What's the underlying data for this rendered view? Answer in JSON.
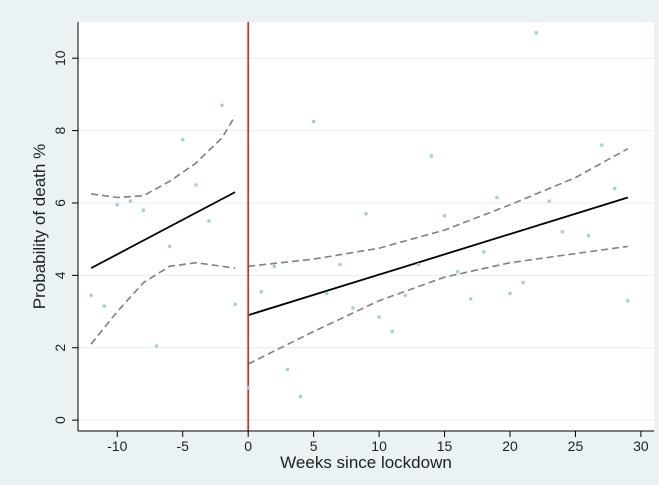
{
  "chart_data": {
    "type": "scatter",
    "xlabel": "Weeks  since lockdown",
    "ylabel": "Probability of death %",
    "xlim": [
      -13,
      31
    ],
    "ylim": [
      -0.3,
      11
    ],
    "x_ticks": [
      -10,
      -5,
      0,
      5,
      10,
      15,
      20,
      25,
      30
    ],
    "y_ticks": [
      0,
      2,
      4,
      6,
      8,
      10
    ],
    "x_tick_labels": [
      "-10",
      "-5",
      "0",
      "5",
      "10",
      "15",
      "20",
      "25",
      "30"
    ],
    "y_tick_labels": [
      "0",
      "2",
      "4",
      "6",
      "8",
      "10"
    ],
    "grid": "horizontal",
    "legend": "none",
    "cutoff_x": 0,
    "colors": {
      "outer_background": "#eaf2f3",
      "plot_background": "#ffffff",
      "points": "#9ed4d8",
      "fit_line": "#000000",
      "ci_line": "#808080",
      "cutoff_line": "#e32020",
      "grid": "#e6eef0"
    },
    "points": [
      {
        "x": -12,
        "y": 3.45
      },
      {
        "x": -11,
        "y": 3.15
      },
      {
        "x": -10,
        "y": 5.95
      },
      {
        "x": -9,
        "y": 6.05
      },
      {
        "x": -8,
        "y": 5.8
      },
      {
        "x": -7,
        "y": 2.05
      },
      {
        "x": -6,
        "y": 4.8
      },
      {
        "x": -5,
        "y": 7.75
      },
      {
        "x": -4,
        "y": 6.5
      },
      {
        "x": -3,
        "y": 5.5
      },
      {
        "x": -2,
        "y": 8.7
      },
      {
        "x": -1,
        "y": 3.2
      },
      {
        "x": 0,
        "y": 0.9
      },
      {
        "x": 1,
        "y": 3.55
      },
      {
        "x": 2,
        "y": 4.25
      },
      {
        "x": 3,
        "y": 1.4
      },
      {
        "x": 4,
        "y": 0.65
      },
      {
        "x": 5,
        "y": 8.25
      },
      {
        "x": 6,
        "y": 3.5
      },
      {
        "x": 7,
        "y": 4.3
      },
      {
        "x": 8,
        "y": 3.1
      },
      {
        "x": 9,
        "y": 5.7
      },
      {
        "x": 10,
        "y": 2.85
      },
      {
        "x": 11,
        "y": 2.45
      },
      {
        "x": 12,
        "y": 3.45
      },
      {
        "x": 13,
        "y": 4.3
      },
      {
        "x": 14,
        "y": 7.3
      },
      {
        "x": 15,
        "y": 5.65
      },
      {
        "x": 16,
        "y": 4.1
      },
      {
        "x": 17,
        "y": 3.35
      },
      {
        "x": 18,
        "y": 4.65
      },
      {
        "x": 19,
        "y": 6.15
      },
      {
        "x": 20,
        "y": 3.5
      },
      {
        "x": 21,
        "y": 3.8
      },
      {
        "x": 22,
        "y": 10.7
      },
      {
        "x": 23,
        "y": 6.05
      },
      {
        "x": 24,
        "y": 5.2
      },
      {
        "x": 26,
        "y": 5.1
      },
      {
        "x": 27,
        "y": 7.6
      },
      {
        "x": 28,
        "y": 6.4
      },
      {
        "x": 29,
        "y": 3.3
      }
    ],
    "fit_lines": [
      {
        "segment": "pre",
        "x": [
          -12,
          -1
        ],
        "y": [
          4.2,
          6.3
        ]
      },
      {
        "segment": "post",
        "x": [
          0,
          29
        ],
        "y": [
          2.9,
          6.15
        ]
      }
    ],
    "ci_bands": [
      {
        "segment": "pre",
        "upper": [
          [
            -12,
            6.25
          ],
          [
            -10,
            6.15
          ],
          [
            -8,
            6.2
          ],
          [
            -6,
            6.6
          ],
          [
            -4,
            7.1
          ],
          [
            -2,
            7.8
          ],
          [
            -1,
            8.4
          ]
        ],
        "lower": [
          [
            -12,
            2.1
          ],
          [
            -10,
            3.0
          ],
          [
            -8,
            3.8
          ],
          [
            -6,
            4.25
          ],
          [
            -4,
            4.35
          ],
          [
            -2,
            4.25
          ],
          [
            -1,
            4.2
          ]
        ]
      },
      {
        "segment": "post",
        "upper": [
          [
            0,
            4.25
          ],
          [
            5,
            4.45
          ],
          [
            10,
            4.75
          ],
          [
            15,
            5.25
          ],
          [
            20,
            5.95
          ],
          [
            25,
            6.7
          ],
          [
            29,
            7.5
          ]
        ],
        "lower": [
          [
            0,
            1.55
          ],
          [
            5,
            2.45
          ],
          [
            10,
            3.3
          ],
          [
            15,
            3.95
          ],
          [
            20,
            4.35
          ],
          [
            25,
            4.6
          ],
          [
            29,
            4.8
          ]
        ]
      }
    ]
  }
}
